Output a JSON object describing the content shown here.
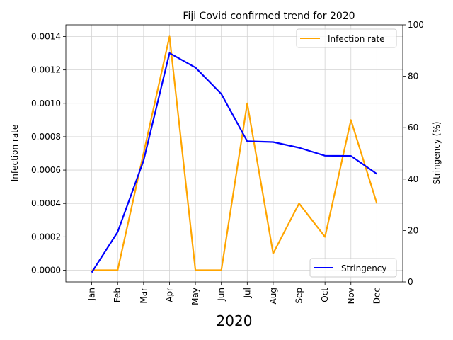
{
  "chart_data": {
    "type": "line",
    "title": "Fiji Covid confirmed trend for 2020",
    "xlabel": "2020",
    "ylabel_left": "Infection rate",
    "ylabel_right": "Stringency (%)",
    "categories": [
      "Jan",
      "Feb",
      "Mar",
      "Apr",
      "May",
      "Jun",
      "Jul",
      "Aug",
      "Sep",
      "Oct",
      "Nov",
      "Dec"
    ],
    "series": [
      {
        "name": "Infection rate",
        "axis": "left",
        "color": "#ffa500",
        "values": [
          0.0,
          0.0,
          0.0007,
          0.0014,
          0.0,
          0.0,
          0.001,
          0.0001,
          0.0004,
          0.0002,
          0.0009,
          0.0004
        ]
      },
      {
        "name": "Stringency",
        "axis": "right",
        "color": "#0000ff",
        "values": [
          3.7,
          19.4,
          47.2,
          89.0,
          83.4,
          73.1,
          54.7,
          54.4,
          52.2,
          49.1,
          49.0,
          42.0
        ]
      }
    ],
    "ylim_left": [
      -7e-05,
      0.00147
    ],
    "ylim_right": [
      0,
      100
    ],
    "yticks_left": [
      "0.0000",
      "0.0002",
      "0.0004",
      "0.0006",
      "0.0008",
      "0.0010",
      "0.0012",
      "0.0014"
    ],
    "yticks_right": [
      "0",
      "20",
      "40",
      "60",
      "80",
      "100"
    ],
    "grid": true,
    "legend_left_series": "top-right",
    "legend_right_series": "bottom-right"
  }
}
